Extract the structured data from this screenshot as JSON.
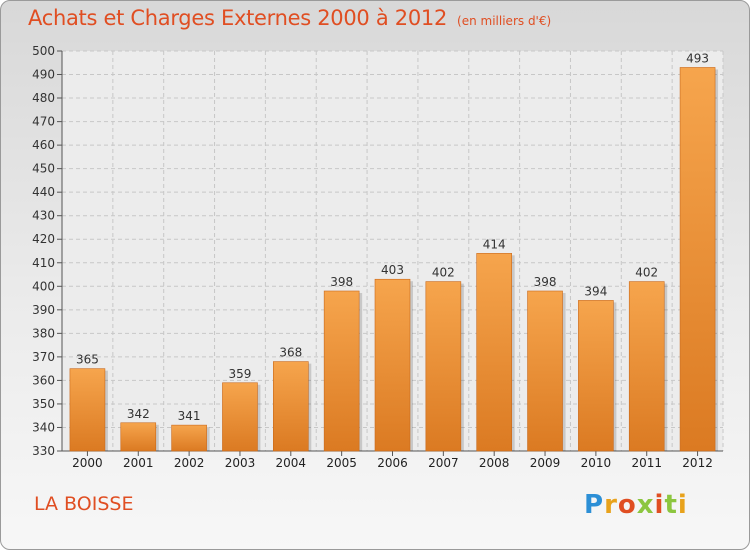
{
  "header": {
    "title": "Achats et Charges Externes 2000 à 2012",
    "unit": "(en milliers d'€)"
  },
  "footer": {
    "commune": "LA BOISSE",
    "logo": "Proxiti"
  },
  "colors": {
    "bar_top": "#f6a54d",
    "bar_bottom": "#db7a22",
    "title": "#e04e22"
  },
  "chart_data": {
    "type": "bar",
    "title": "Achats et Charges Externes 2000 à 2012",
    "subtitle": "(en milliers d'€)",
    "categories": [
      "2000",
      "2001",
      "2002",
      "2003",
      "2004",
      "2005",
      "2006",
      "2007",
      "2008",
      "2009",
      "2010",
      "2011",
      "2012"
    ],
    "values": [
      365,
      342,
      341,
      359,
      368,
      398,
      403,
      402,
      414,
      398,
      394,
      402,
      493
    ],
    "ylim": [
      330,
      500
    ],
    "yticks": [
      330,
      340,
      350,
      360,
      370,
      380,
      390,
      400,
      410,
      420,
      430,
      440,
      450,
      460,
      470,
      480,
      490,
      500
    ],
    "grid": true,
    "xlabel": "",
    "ylabel": ""
  }
}
